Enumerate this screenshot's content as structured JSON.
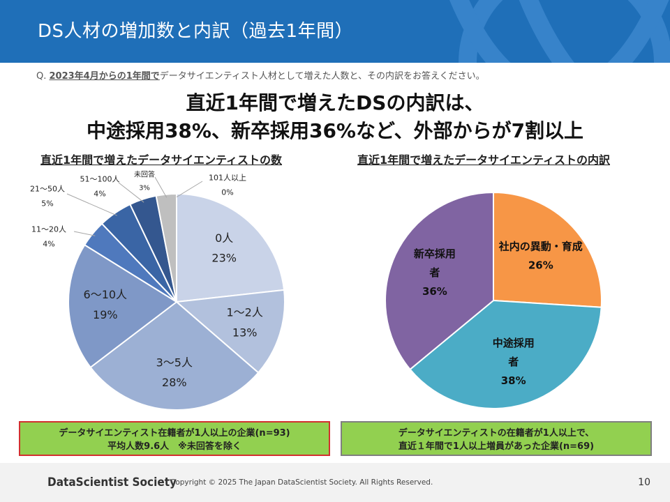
{
  "header": {
    "title": "DS人材の増加数と内訳（過去1年間）"
  },
  "question": {
    "prefix": "Q. ",
    "emphasis": "2023年4月からの1年間で",
    "rest": "データサイエンティスト人材として増えた人数と、その内訳をお答えください。"
  },
  "headline": {
    "line1": "直近1年間で増えたDSの内訳は、",
    "line2": "中途採用38%、新卒採用36%など、外部からが7割以上"
  },
  "colors": {
    "header": "#1f6fb8",
    "note_fill": "#92d050",
    "note_left_border": "#d22f2f",
    "note_right_border": "#7f7f7f"
  },
  "chart_data": [
    {
      "type": "pie",
      "title": "直近1年間で増えたデータサイエンティストの数",
      "start_angle_deg": 0,
      "direction": "clockwise",
      "slices": [
        {
          "label": "0人",
          "value": 23,
          "pct": "23%",
          "color": "#c9d3e8"
        },
        {
          "label": "1〜2人",
          "value": 13,
          "pct": "13%",
          "color": "#b2c1dd"
        },
        {
          "label": "3〜5人",
          "value": 28,
          "pct": "28%",
          "color": "#9cb0d4"
        },
        {
          "label": "6〜10人",
          "value": 19,
          "pct": "19%",
          "color": "#7f98c7"
        },
        {
          "label": "11〜20人",
          "value": 4,
          "pct": "4%",
          "color": "#4f79bd"
        },
        {
          "label": "21〜50人",
          "value": 5,
          "pct": "5%",
          "color": "#3a65a5"
        },
        {
          "label": "51〜100人",
          "value": 4,
          "pct": "4%",
          "color": "#34578f"
        },
        {
          "label": "未回答",
          "value": 3,
          "pct": "3%",
          "color": "#bfbfbf"
        },
        {
          "label": "101人以上",
          "value": 0,
          "pct": "0%",
          "color": "#2b4a78"
        }
      ],
      "note_lines": [
        "データサイエンティスト在籍者が1人以上の企業(n=93)",
        "平均人数9.6人　※未回答を除く"
      ]
    },
    {
      "type": "pie",
      "title": "直近1年間で増えたデータサイエンティストの内訳",
      "start_angle_deg": 0,
      "direction": "clockwise",
      "slices": [
        {
          "label": "社内の異動・育成",
          "label_lines": [
            "社内の異動・育成"
          ],
          "value": 26,
          "pct": "26%",
          "color": "#f79646"
        },
        {
          "label": "中途採用者",
          "label_lines": [
            "中途採用",
            "者"
          ],
          "value": 38,
          "pct": "38%",
          "color": "#4bacc6"
        },
        {
          "label": "新卒採用者",
          "label_lines": [
            "新卒採用",
            "者"
          ],
          "value": 36,
          "pct": "36%",
          "color": "#8064a2"
        }
      ],
      "note_lines": [
        "データサイエンティストの在籍者が1人以上で、",
        "直近１年間で1人以上増員があった企業(n=69)"
      ]
    }
  ],
  "footer": {
    "brand": "DataScientist Society",
    "copyright": "Copyright © 2025  The Japan DataScientist Society. All Rights Reserved.",
    "page": "10"
  }
}
